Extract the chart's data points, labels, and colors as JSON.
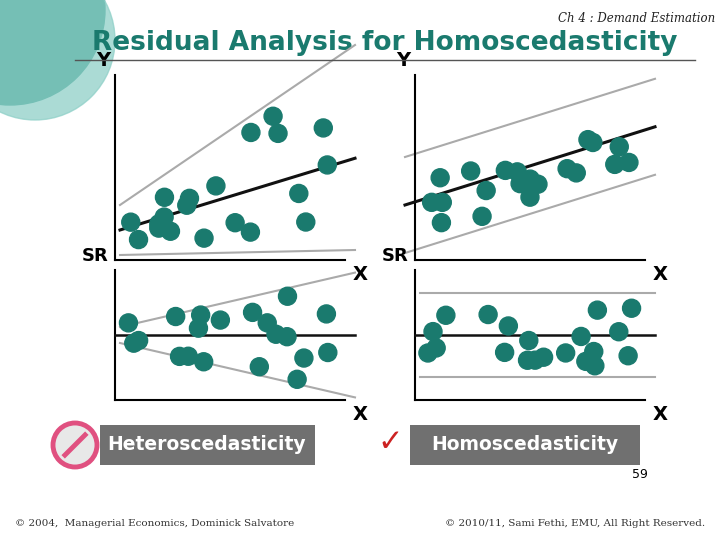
{
  "title": "Residual Analysis for Homoscedasticity",
  "chapter": "Ch 4 : Demand Estimation",
  "bg_color": "#ffffff",
  "teal_color": "#1a7a6e",
  "dot_color": "#1a7a6e",
  "gray_line_color": "#aaaaaa",
  "black_line_color": "#111111",
  "footer_left": "© 2004,  Managerial Economics, Dominick Salvatore",
  "footer_right": "© 2010/11, Sami Fethi, EMU, All Right Reserved.",
  "page_num": "59",
  "hetero_label": "Heteroscedasticity",
  "homo_label": "Homoscedasticity",
  "circle_bg1_color": "#2a8f80",
  "circle_bg2_color": "#8fd0c8",
  "label_box_color": "#707070"
}
